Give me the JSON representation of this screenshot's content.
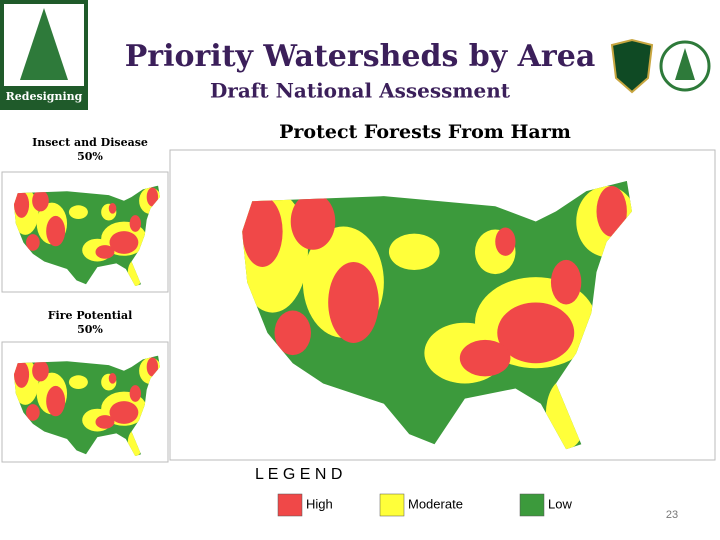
{
  "header": {
    "title": "Priority Watersheds by Area",
    "subtitle": "Draft National Assessment",
    "logo_text": "Redesigning"
  },
  "main_map": {
    "title": "Protect Forests From Harm"
  },
  "side_maps": [
    {
      "title": "Insect and Disease",
      "weight": "50%"
    },
    {
      "title": "Fire Potential",
      "weight": "50%"
    }
  ],
  "legend": {
    "title": "L E G E N D",
    "items": [
      {
        "label": "High",
        "color": "#f04848"
      },
      {
        "label": "Moderate",
        "color": "#ffff3a"
      },
      {
        "label": "Low",
        "color": "#3c9a3c"
      }
    ]
  },
  "page_number": "23"
}
